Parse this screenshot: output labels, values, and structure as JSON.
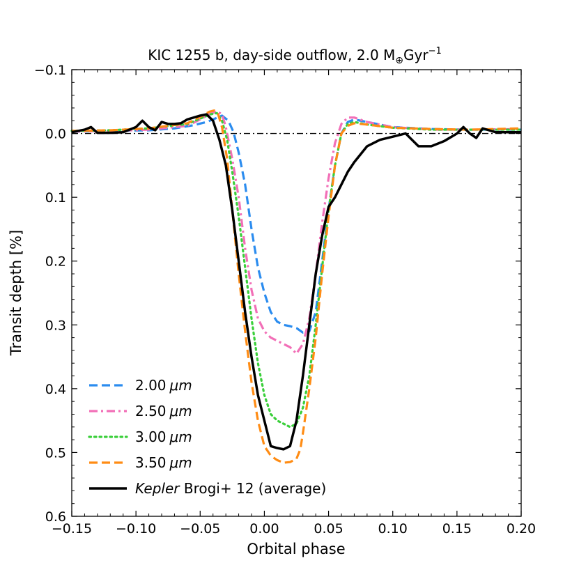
{
  "chart_data": {
    "type": "line",
    "title": {
      "prefix": "KIC 1255 b, day-side outflow, 2.0 M",
      "subscript": "⊕",
      "suffix": "Gyr",
      "superscript": "−1"
    },
    "xlabel": "Orbital phase",
    "ylabel": "Transit depth [%]",
    "xlim": [
      -0.15,
      0.2
    ],
    "ylim": [
      0.6,
      -0.1
    ],
    "y_inverted": true,
    "x_ticks": [
      -0.15,
      -0.1,
      -0.05,
      0.0,
      0.05,
      0.1,
      0.15,
      0.2
    ],
    "x_tick_labels": [
      "−0.15",
      "−0.10",
      "−0.05",
      "0.00",
      "0.05",
      "0.10",
      "0.15",
      "0.20"
    ],
    "y_ticks": [
      -0.1,
      0.0,
      0.1,
      0.2,
      0.3,
      0.4,
      0.5,
      0.6
    ],
    "y_tick_labels": [
      "−0.1",
      "0.0",
      "0.1",
      "0.2",
      "0.3",
      "0.4",
      "0.5",
      "0.6"
    ],
    "reference_line": {
      "y": 0.0,
      "style": "dash-dot",
      "color": "#000000"
    },
    "legend_position": "lower-left",
    "series": [
      {
        "name": "2.00 μm",
        "label_value": "2.00",
        "label_unit": "μm",
        "color": "#2b8cef",
        "dash": "dashed",
        "x": [
          -0.15,
          -0.12,
          -0.09,
          -0.07,
          -0.055,
          -0.045,
          -0.04,
          -0.033,
          -0.028,
          -0.024,
          -0.02,
          -0.015,
          -0.01,
          -0.005,
          0.0,
          0.005,
          0.01,
          0.015,
          0.02,
          0.025,
          0.03,
          0.035,
          0.04,
          0.045,
          0.05,
          0.055,
          0.06,
          0.065,
          0.07,
          0.08,
          0.1,
          0.13,
          0.16,
          0.2
        ],
        "y": [
          -0.003,
          -0.004,
          -0.005,
          -0.008,
          -0.013,
          -0.018,
          -0.022,
          -0.028,
          -0.02,
          -0.002,
          0.03,
          0.08,
          0.15,
          0.21,
          0.25,
          0.28,
          0.295,
          0.3,
          0.302,
          0.305,
          0.312,
          0.31,
          0.28,
          0.2,
          0.12,
          0.05,
          0.0,
          -0.018,
          -0.022,
          -0.018,
          -0.01,
          -0.007,
          -0.006,
          -0.006
        ]
      },
      {
        "name": "2.50 μm",
        "label_value": "2.50",
        "label_unit": "μm",
        "color": "#f26fb7",
        "dash": "dashdot",
        "x": [
          -0.15,
          -0.12,
          -0.09,
          -0.06,
          -0.05,
          -0.043,
          -0.037,
          -0.033,
          -0.03,
          -0.025,
          -0.02,
          -0.015,
          -0.01,
          -0.005,
          0.0,
          0.005,
          0.01,
          0.015,
          0.02,
          0.025,
          0.03,
          0.035,
          0.04,
          0.045,
          0.05,
          0.055,
          0.06,
          0.065,
          0.07,
          0.08,
          0.1,
          0.13,
          0.16,
          0.2
        ],
        "y": [
          -0.003,
          -0.004,
          -0.006,
          -0.012,
          -0.022,
          -0.03,
          -0.035,
          -0.03,
          -0.01,
          0.04,
          0.1,
          0.18,
          0.245,
          0.29,
          0.31,
          0.32,
          0.325,
          0.33,
          0.335,
          0.345,
          0.33,
          0.29,
          0.22,
          0.14,
          0.07,
          0.015,
          -0.015,
          -0.025,
          -0.025,
          -0.018,
          -0.01,
          -0.006,
          -0.006,
          -0.007
        ]
      },
      {
        "name": "3.00 μm",
        "label_value": "3.00",
        "label_unit": "μm",
        "color": "#3acf3a",
        "dash": "dotted",
        "x": [
          -0.15,
          -0.12,
          -0.09,
          -0.06,
          -0.048,
          -0.042,
          -0.037,
          -0.033,
          -0.029,
          -0.025,
          -0.02,
          -0.015,
          -0.01,
          -0.005,
          0.0,
          0.005,
          0.01,
          0.015,
          0.02,
          0.025,
          0.03,
          0.035,
          0.04,
          0.045,
          0.05,
          0.055,
          0.06,
          0.065,
          0.07,
          0.08,
          0.1,
          0.13,
          0.16,
          0.2
        ],
        "y": [
          -0.004,
          -0.005,
          -0.008,
          -0.015,
          -0.025,
          -0.03,
          -0.032,
          -0.02,
          0.01,
          0.06,
          0.13,
          0.21,
          0.29,
          0.36,
          0.41,
          0.44,
          0.45,
          0.455,
          0.46,
          0.455,
          0.43,
          0.38,
          0.3,
          0.21,
          0.12,
          0.05,
          0.0,
          -0.015,
          -0.018,
          -0.014,
          -0.009,
          -0.006,
          -0.006,
          -0.006
        ]
      },
      {
        "name": "3.50 μm",
        "label_value": "3.50",
        "label_unit": "μm",
        "color": "#ff8c14",
        "dash": "dashed",
        "x": [
          -0.15,
          -0.12,
          -0.09,
          -0.06,
          -0.048,
          -0.043,
          -0.039,
          -0.036,
          -0.033,
          -0.029,
          -0.025,
          -0.02,
          -0.015,
          -0.01,
          -0.005,
          0.0,
          0.005,
          0.01,
          0.015,
          0.02,
          0.025,
          0.028,
          0.03,
          0.035,
          0.04,
          0.045,
          0.05,
          0.055,
          0.06,
          0.065,
          0.07,
          0.08,
          0.1,
          0.13,
          0.16,
          0.2
        ],
        "y": [
          -0.004,
          -0.005,
          -0.008,
          -0.016,
          -0.028,
          -0.034,
          -0.036,
          -0.03,
          -0.01,
          0.04,
          0.12,
          0.22,
          0.31,
          0.39,
          0.45,
          0.49,
          0.505,
          0.512,
          0.516,
          0.515,
          0.51,
          0.495,
          0.47,
          0.4,
          0.32,
          0.22,
          0.13,
          0.05,
          0.0,
          -0.012,
          -0.016,
          -0.014,
          -0.009,
          -0.007,
          -0.006,
          -0.008
        ]
      },
      {
        "name": "Kepler Brogi+ 12 (average)",
        "label_italic": "Kepler",
        "label_rest": " Brogi+ 12 (average)",
        "color": "#000000",
        "dash": "solid",
        "x": [
          -0.15,
          -0.14,
          -0.135,
          -0.13,
          -0.12,
          -0.11,
          -0.1,
          -0.095,
          -0.09,
          -0.085,
          -0.08,
          -0.075,
          -0.07,
          -0.065,
          -0.06,
          -0.055,
          -0.05,
          -0.045,
          -0.04,
          -0.035,
          -0.03,
          -0.025,
          -0.02,
          -0.015,
          -0.01,
          -0.005,
          0.0,
          0.005,
          0.01,
          0.015,
          0.02,
          0.025,
          0.03,
          0.035,
          0.04,
          0.045,
          0.05,
          0.055,
          0.06,
          0.065,
          0.07,
          0.08,
          0.09,
          0.1,
          0.11,
          0.12,
          0.13,
          0.14,
          0.15,
          0.155,
          0.16,
          0.165,
          0.17,
          0.18,
          0.185,
          0.19,
          0.195,
          0.2
        ],
        "y": [
          -0.002,
          -0.006,
          -0.01,
          -0.001,
          -0.001,
          -0.002,
          -0.01,
          -0.02,
          -0.01,
          -0.005,
          -0.018,
          -0.015,
          -0.015,
          -0.016,
          -0.022,
          -0.025,
          -0.028,
          -0.03,
          -0.02,
          0.01,
          0.05,
          0.12,
          0.2,
          0.28,
          0.35,
          0.41,
          0.45,
          0.49,
          0.493,
          0.495,
          0.49,
          0.45,
          0.38,
          0.3,
          0.22,
          0.16,
          0.115,
          0.1,
          0.08,
          0.06,
          0.045,
          0.02,
          0.01,
          0.005,
          0.0,
          0.02,
          0.02,
          0.012,
          0.0,
          -0.01,
          0.0,
          0.007,
          -0.008,
          -0.002,
          -0.002,
          -0.002,
          -0.002,
          -0.002
        ]
      }
    ]
  }
}
